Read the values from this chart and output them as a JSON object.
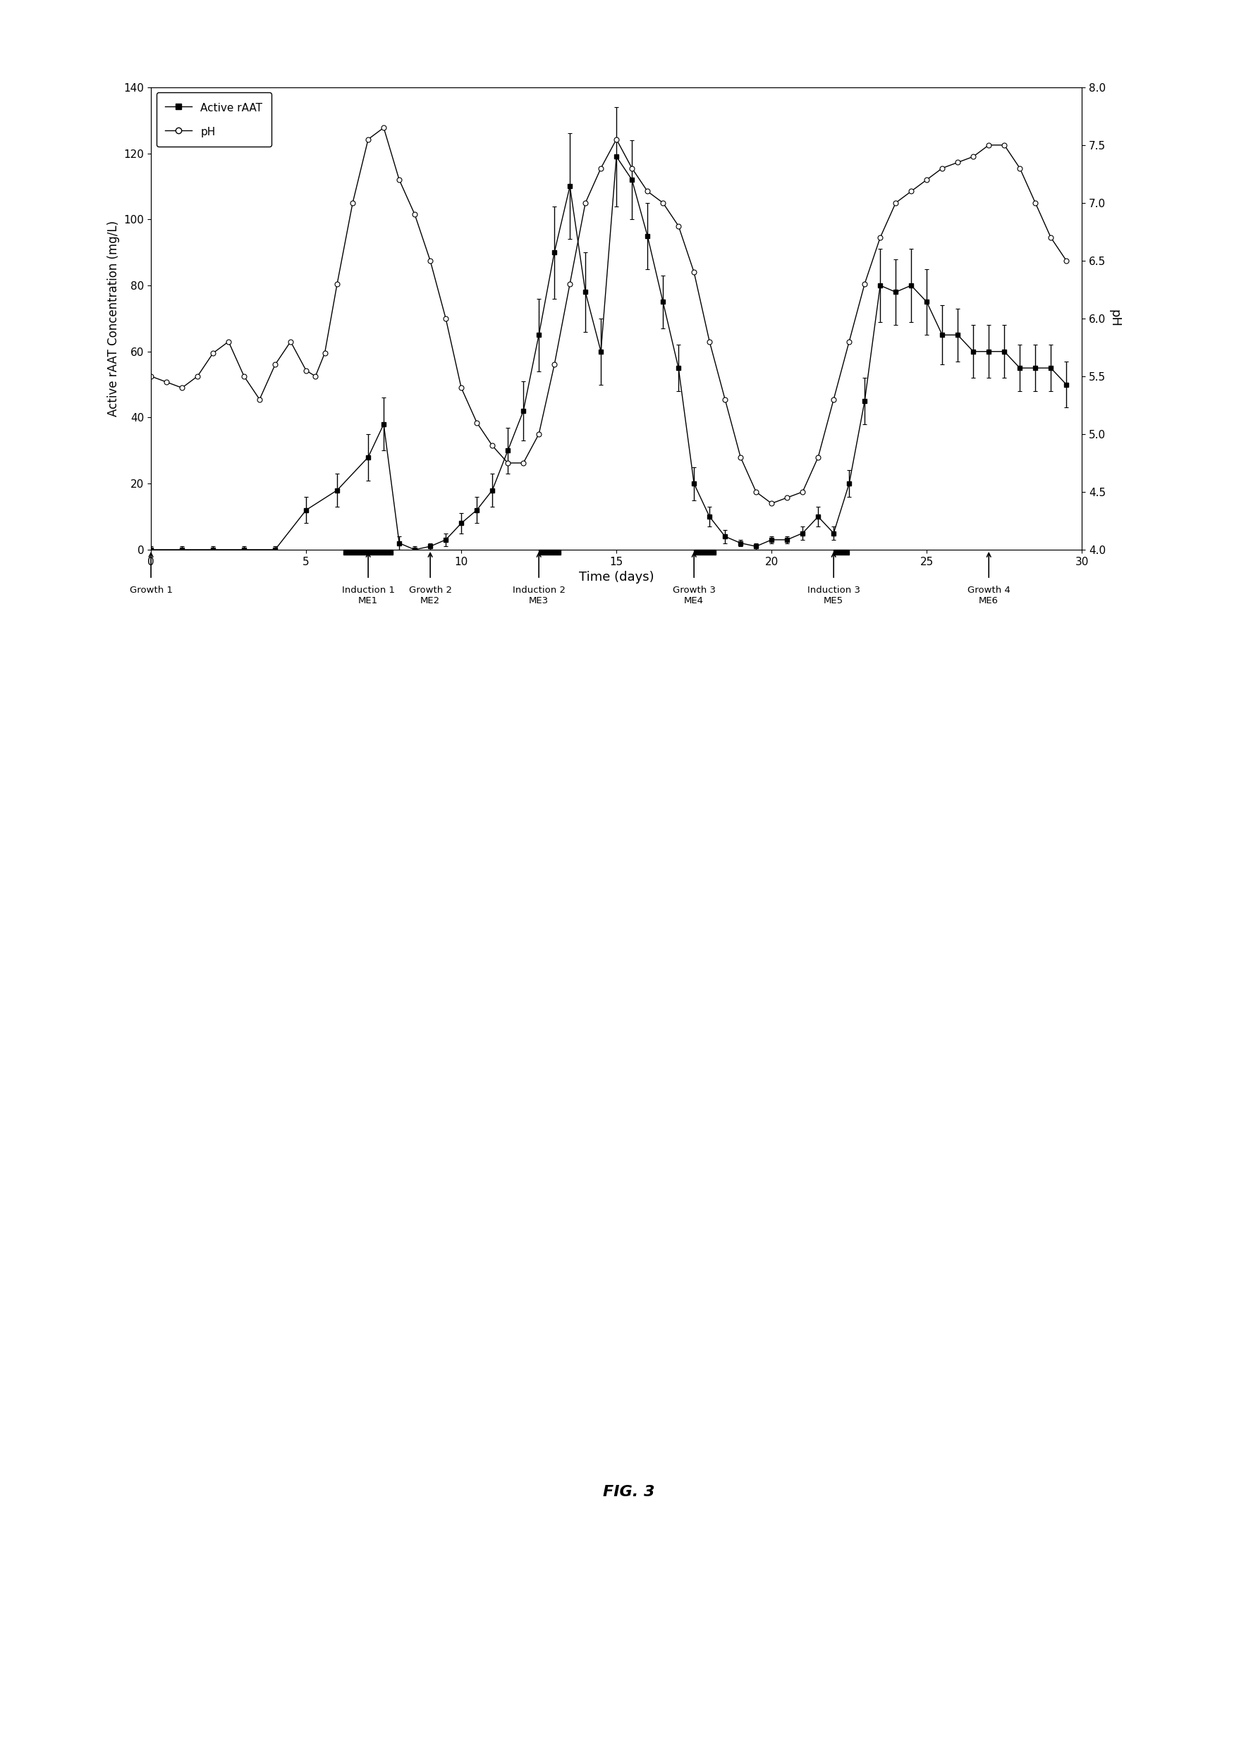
{
  "xlabel": "Time (days)",
  "ylabel_left": "Active rAAT Concentration (mg/L)",
  "ylabel_right": "pH",
  "xlim": [
    0,
    30
  ],
  "ylim_left": [
    0,
    140
  ],
  "ylim_right": [
    4.0,
    8.0
  ],
  "yticks_left": [
    0,
    20,
    40,
    60,
    80,
    100,
    120,
    140
  ],
  "yticks_right": [
    4.0,
    4.5,
    5.0,
    5.5,
    6.0,
    6.5,
    7.0,
    7.5,
    8.0
  ],
  "xticks": [
    0,
    5,
    10,
    15,
    20,
    25,
    30
  ],
  "raat_x": [
    0,
    1,
    2,
    3,
    4,
    5,
    6,
    7,
    7.5,
    8,
    8.5,
    9,
    9.5,
    10,
    10.5,
    11,
    11.5,
    12,
    12.5,
    13,
    13.5,
    14,
    14.5,
    15,
    15.5,
    16,
    16.5,
    17,
    17.5,
    18,
    18.5,
    19,
    19.5,
    20,
    20.5,
    21,
    21.5,
    22,
    22.5,
    23,
    23.5,
    24,
    24.5,
    25,
    25.5,
    26,
    26.5,
    27,
    27.5,
    28,
    28.5,
    29,
    29.5
  ],
  "raat_y": [
    0,
    0,
    0,
    0,
    0,
    12,
    18,
    28,
    38,
    2,
    0,
    1,
    3,
    8,
    12,
    18,
    30,
    42,
    65,
    90,
    110,
    78,
    60,
    119,
    112,
    95,
    75,
    55,
    20,
    10,
    4,
    2,
    1,
    3,
    3,
    5,
    10,
    5,
    20,
    45,
    80,
    78,
    80,
    75,
    65,
    65,
    60,
    60,
    60,
    55,
    55,
    55,
    50
  ],
  "raat_yerr": [
    1,
    1,
    1,
    1,
    1,
    4,
    5,
    7,
    8,
    2,
    1,
    1,
    2,
    3,
    4,
    5,
    7,
    9,
    11,
    14,
    16,
    12,
    10,
    15,
    12,
    10,
    8,
    7,
    5,
    3,
    2,
    1,
    1,
    1,
    1,
    2,
    3,
    2,
    4,
    7,
    11,
    10,
    11,
    10,
    9,
    8,
    8,
    8,
    8,
    7,
    7,
    7,
    7
  ],
  "ph_x": [
    0,
    0.5,
    1,
    1.5,
    2,
    2.5,
    3,
    3.5,
    4,
    4.5,
    5,
    5.3,
    5.6,
    6.0,
    6.5,
    7,
    7.5,
    8,
    8.5,
    9,
    9.5,
    10,
    10.5,
    11,
    11.5,
    12,
    12.5,
    13,
    13.5,
    14,
    14.5,
    15,
    15.5,
    16,
    16.5,
    17,
    17.5,
    18,
    18.5,
    19,
    19.5,
    20,
    20.5,
    21,
    21.5,
    22,
    22.5,
    23,
    23.5,
    24,
    24.5,
    25,
    25.5,
    26,
    26.5,
    27,
    27.5,
    28,
    28.5,
    29,
    29.5
  ],
  "ph_y": [
    5.5,
    5.45,
    5.4,
    5.5,
    5.7,
    5.8,
    5.5,
    5.3,
    5.6,
    5.8,
    5.55,
    5.5,
    5.7,
    6.3,
    7.0,
    7.55,
    7.65,
    7.2,
    6.9,
    6.5,
    6.0,
    5.4,
    5.1,
    4.9,
    4.75,
    4.75,
    5.0,
    5.6,
    6.3,
    7.0,
    7.3,
    7.55,
    7.3,
    7.1,
    7.0,
    6.8,
    6.4,
    5.8,
    5.3,
    4.8,
    4.5,
    4.4,
    4.45,
    4.5,
    4.8,
    5.3,
    5.8,
    6.3,
    6.7,
    7.0,
    7.1,
    7.2,
    7.3,
    7.35,
    7.4,
    7.5,
    7.5,
    7.3,
    7.0,
    6.7,
    6.5
  ],
  "induction_bars": [
    [
      6.2,
      7.8
    ],
    [
      12.5,
      13.2
    ],
    [
      17.5,
      18.2
    ],
    [
      22.0,
      22.5
    ]
  ],
  "phase_arrows": [
    0.0,
    7.0,
    9.0,
    12.5,
    17.5,
    22.0,
    27.0
  ],
  "phase_labels": [
    "Growth 1",
    "Induction 1\nME1",
    "Growth 2\nME2",
    "Induction 2\nME3",
    "Growth 3\nME4",
    "Induction 3\nME5",
    "Growth 4\nME6"
  ],
  "fig3_label": "FIG. 3"
}
